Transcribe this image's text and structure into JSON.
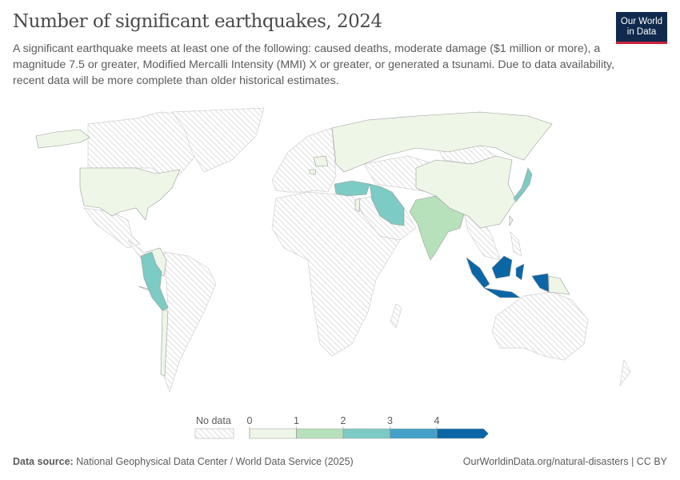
{
  "header": {
    "title": "Number of significant earthquakes, 2024",
    "subtitle": "A significant earthquake meets at least one of the following: caused deaths, moderate damage ($1 million or more), a magnitude 7.5 or greater, Modified Mercalli Intensity (MMI) X or greater, or generated a tsunami. Due to data availability, recent data will be more complete than older historical estimates.",
    "logo": "Our World in Data"
  },
  "chart_data": {
    "type": "choropleth-map",
    "title": "Number of significant earthquakes, 2024",
    "year": 2024,
    "legend": {
      "no_data_label": "No data",
      "bins": [
        {
          "from": 0,
          "to": 1,
          "color": "#eef6e8"
        },
        {
          "from": 1,
          "to": 2,
          "color": "#b7e1bb"
        },
        {
          "from": 2,
          "to": 3,
          "color": "#7ccbc4"
        },
        {
          "from": 3,
          "to": 4,
          "color": "#43a1c9"
        },
        {
          "from": 4,
          "to": null,
          "color": "#0b66a6"
        }
      ],
      "tick_labels": [
        "0",
        "1",
        "2",
        "3",
        "4"
      ],
      "placement": "bottom-center"
    },
    "countries": [
      {
        "name": "United States",
        "value": 0
      },
      {
        "name": "Colombia",
        "value": 0
      },
      {
        "name": "Chile",
        "value": 0
      },
      {
        "name": "Cuba",
        "value": 0
      },
      {
        "name": "Russia",
        "value": 0
      },
      {
        "name": "China",
        "value": 0
      },
      {
        "name": "Taiwan",
        "value": 0
      },
      {
        "name": "Papua New Guinea",
        "value": 0
      },
      {
        "name": "Poland",
        "value": 0
      },
      {
        "name": "Slovenia",
        "value": 0
      },
      {
        "name": "Israel",
        "value": 0
      },
      {
        "name": "India",
        "value": 1
      },
      {
        "name": "Peru",
        "value": 2
      },
      {
        "name": "Turkey",
        "value": 2
      },
      {
        "name": "Iran",
        "value": 2
      },
      {
        "name": "Japan",
        "value": 2
      },
      {
        "name": "Indonesia",
        "value": 4
      }
    ]
  },
  "footer": {
    "source_label": "Data source:",
    "source_text": "National Geophysical Data Center / World Data Service (2025)",
    "url": "OurWorldinData.org/natural-disasters | CC BY"
  },
  "colors": {
    "no_data": "#e6e6e6",
    "border": "#c8c8c8",
    "logo_bg": "#0f2a4d",
    "logo_accent": "#c8213a"
  }
}
